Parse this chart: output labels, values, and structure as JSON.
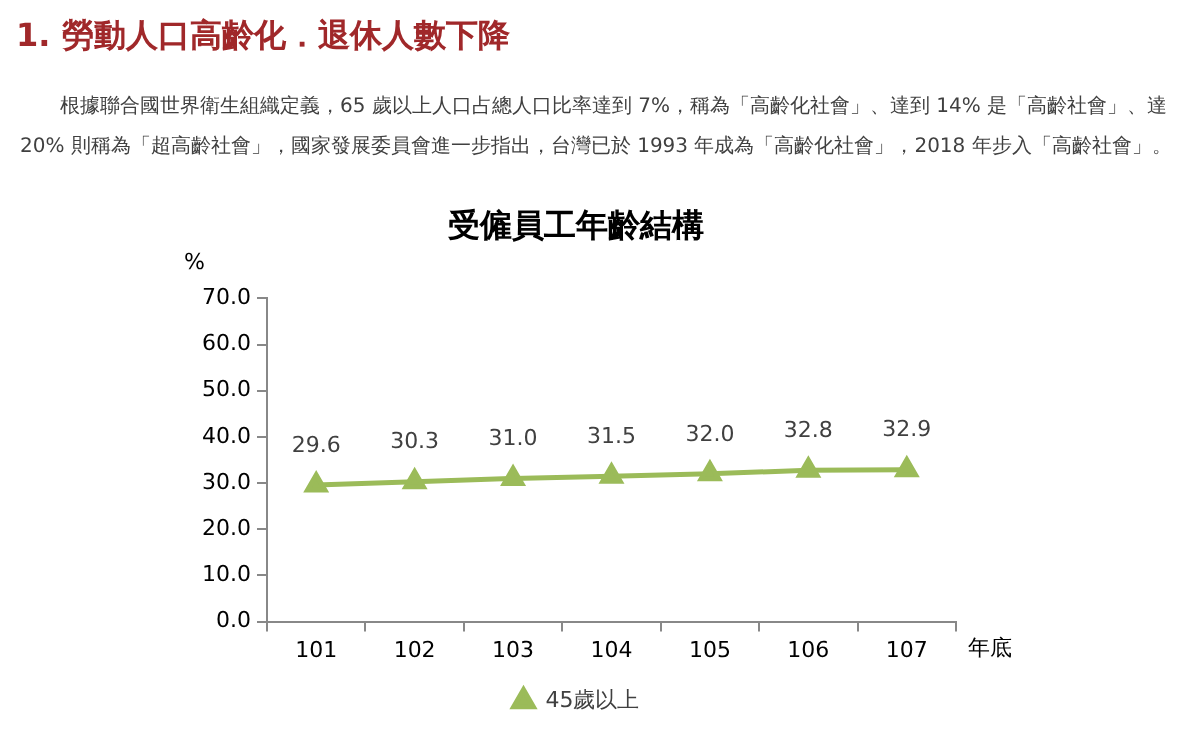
{
  "chart_data": {
    "type": "line",
    "title": "受僱員工年齡結構",
    "annotations": [
      "1. 勞動人口高齡化．退休人數下降",
      "根據聯合國世界衛生組織定義，65 歲以上人口占總人口比率達到 7%，稱為「高齡化社會」、達到 14% 是「高齡社會」、達 20% 則稱為「超高齡社會」，國家發展委員會進一步指出，台灣已於 1993 年成為「高齡化社會」，2018 年步入「高齡社會」。"
    ],
    "categories": [
      "101",
      "102",
      "103",
      "104",
      "105",
      "106",
      "107"
    ],
    "xlabel": "年底",
    "ylabel": "%",
    "series": [
      {
        "name": "45歲以上",
        "color": "#9bbb59",
        "values": [
          29.6,
          30.3,
          31.0,
          31.5,
          32.0,
          32.8,
          32.9
        ],
        "value_labels": [
          "29.6",
          "30.3",
          "31.0",
          "31.5",
          "32.0",
          "32.8",
          "32.9"
        ]
      }
    ],
    "ylim": [
      0,
      70
    ],
    "yticks": [
      {
        "value": 0,
        "label": "0.0"
      },
      {
        "value": 10,
        "label": "10.0"
      },
      {
        "value": 20,
        "label": "20.0"
      },
      {
        "value": 30,
        "label": "30.0"
      },
      {
        "value": 40,
        "label": "40.0"
      },
      {
        "value": 50,
        "label": "50.0"
      },
      {
        "value": 60,
        "label": "60.0"
      },
      {
        "value": 70,
        "label": "70.0"
      }
    ],
    "grid": false,
    "legend": "bottom",
    "marker": "triangle",
    "line_style": "solid"
  }
}
